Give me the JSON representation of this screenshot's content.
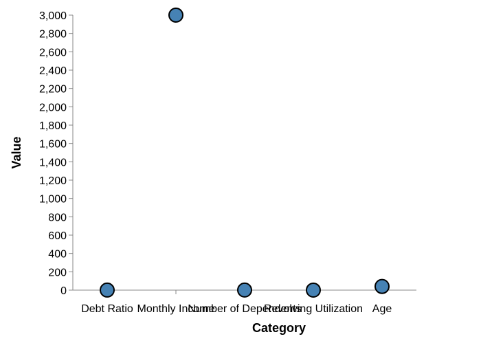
{
  "chart_data": {
    "type": "scatter",
    "categories": [
      "Debt Ratio",
      "Monthly Income",
      "Number of Dependents",
      "Revolving Utilization",
      "Age"
    ],
    "values": [
      0.5,
      3000,
      1,
      0.3,
      40
    ],
    "xlabel": "Category",
    "ylabel": "Value",
    "ylim": [
      0,
      3000
    ],
    "yticks": [
      0,
      200,
      400,
      600,
      800,
      1000,
      1200,
      1400,
      1600,
      1800,
      2000,
      2200,
      2400,
      2600,
      2800,
      3000
    ],
    "ytick_labels": [
      "0",
      "200",
      "400",
      "600",
      "800",
      "1,000",
      "1,200",
      "1,400",
      "1,600",
      "1,800",
      "2,000",
      "2,200",
      "2,400",
      "2,600",
      "2,800",
      "3,000"
    ],
    "grid": false,
    "point_color": "#4682b4"
  }
}
